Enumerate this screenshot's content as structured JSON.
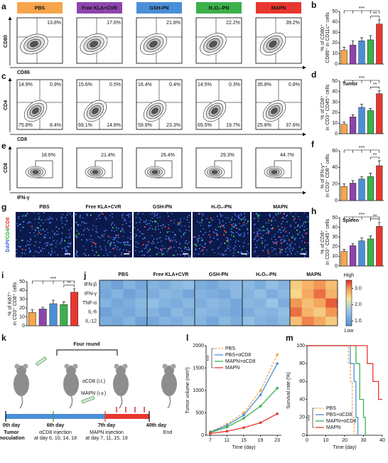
{
  "panel_labels": [
    "a",
    "b",
    "c",
    "d",
    "e",
    "f",
    "g",
    "h",
    "i",
    "j",
    "k",
    "l",
    "m"
  ],
  "groups": [
    "PBS",
    "Free KLA+CVR",
    "GSH-PN",
    "H₂O₂-PN",
    "MAPN"
  ],
  "group_colors": [
    "#f7a54a",
    "#8e44ad",
    "#4a8fd8",
    "#3cb04a",
    "#e8372f"
  ],
  "group_text_colors": [
    "#000000",
    "#ffffff",
    "#ffffff",
    "#000000",
    "#ffffff"
  ],
  "flow_a": {
    "y_label": "CD80",
    "x_label": "CD86",
    "percentages": [
      "13.8%",
      "17.6%",
      "21.8%",
      "22.2%",
      "39.2%"
    ]
  },
  "flow_c": {
    "y_label": "CD4",
    "x_label": "CD8",
    "quadrants": [
      [
        "14.9%",
        "0.9%",
        "75.8%",
        "8.4%"
      ],
      [
        "15.6%",
        "0.5%",
        "69.1%",
        "14.8%"
      ],
      [
        "16.4%",
        "0.4%",
        "59.9%",
        "23.3%"
      ],
      [
        "14.5%",
        "0.3%",
        "65.5%",
        "19.7%"
      ],
      [
        "35.8%",
        "0.8%",
        "25.8%",
        "37.6%"
      ]
    ]
  },
  "flow_e": {
    "y_label": "CD8",
    "x_label": "IFN-γ",
    "percentages": [
      "18.6%",
      "21.4%",
      "26.4%",
      "29.3%",
      "44.7%"
    ]
  },
  "imaging_g": {
    "stain": [
      "DAPI",
      "/CD4",
      "/CD8"
    ],
    "stain_colors": [
      "#3b5bdb",
      "#2fb344",
      "#e03131"
    ]
  },
  "timeline_k": {
    "bracket": "Four round",
    "acd8": "αCD8 (i.t.)",
    "mapn": "MAPN (i.v.)",
    "days": [
      "0th day",
      "6th day",
      "7th day",
      "40th day"
    ],
    "notes": [
      [
        "Tumor",
        "inoculation"
      ],
      [
        "αCD8 injection",
        "at day 6, 10, 14, 18"
      ],
      [
        "MAPN injection",
        "at day 7, 11, 15, 19"
      ],
      [
        "End"
      ]
    ]
  },
  "chart_data": [
    {
      "type": "bar",
      "y_label": [
        "% of CD80⁺",
        "CD86⁺ in CD11c⁺ cells"
      ],
      "values": [
        13,
        18,
        22,
        23,
        38
      ],
      "errors": [
        3,
        4,
        3,
        4,
        4
      ],
      "colors": [
        "#f7a54a",
        "#8e44ad",
        "#4a8fd8",
        "#3cb04a",
        "#e8372f"
      ],
      "ylim": [
        0,
        50
      ],
      "yticks": [
        0,
        10,
        20,
        30,
        40,
        50
      ],
      "annotations": [
        "***",
        "**"
      ]
    },
    {
      "type": "bar",
      "title": "Tumor",
      "y_label": [
        "% of CD8⁺",
        "in CD3⁺ CD45⁺ cells"
      ],
      "values": [
        9,
        16,
        25,
        22,
        38
      ],
      "errors": [
        2,
        2,
        3,
        2,
        3
      ],
      "colors": [
        "#f7a54a",
        "#8e44ad",
        "#4a8fd8",
        "#3cb04a",
        "#e8372f"
      ],
      "ylim": [
        0,
        50
      ],
      "yticks": [
        0,
        10,
        20,
        30,
        40,
        50
      ],
      "annotations": [
        "***",
        "**"
      ]
    },
    {
      "type": "bar",
      "y_label": [
        "% of IFN-γ⁺",
        "in CD3⁺ CD8⁺ cells"
      ],
      "values": [
        17,
        21,
        26,
        29,
        42
      ],
      "errors": [
        3,
        3,
        3,
        4,
        6
      ],
      "colors": [
        "#f7a54a",
        "#8e44ad",
        "#4a8fd8",
        "#3cb04a",
        "#e8372f"
      ],
      "ylim": [
        0,
        60
      ],
      "yticks": [
        0,
        20,
        40,
        60
      ],
      "annotations": [
        "***",
        "**"
      ]
    },
    {
      "type": "bar",
      "title": "Spleen",
      "y_label": [
        "% of CD8⁺",
        "in CD3⁺ CD45⁺ cells"
      ],
      "values": [
        15,
        21,
        26,
        28,
        41
      ],
      "errors": [
        2,
        2,
        3,
        3,
        4
      ],
      "colors": [
        "#f7a54a",
        "#8e44ad",
        "#4a8fd8",
        "#3cb04a",
        "#e8372f"
      ],
      "ylim": [
        0,
        50
      ],
      "yticks": [
        0,
        10,
        20,
        30,
        40,
        50
      ],
      "annotations": [
        "***",
        "**"
      ]
    },
    {
      "type": "bar",
      "y_label": [
        "% of Ki67⁺",
        "in CD3⁺ CD8⁺ cells"
      ],
      "values": [
        15,
        19,
        25,
        24,
        38
      ],
      "errors": [
        3,
        2,
        4,
        3,
        4
      ],
      "colors": [
        "#f7a54a",
        "#8e44ad",
        "#4a8fd8",
        "#3cb04a",
        "#e8372f"
      ],
      "ylim": [
        0,
        50
      ],
      "yticks": [
        0,
        10,
        20,
        30,
        40,
        50
      ],
      "annotations": [
        "***",
        "**"
      ]
    },
    {
      "type": "heatmap",
      "column_groups": [
        "PBS",
        "Free KLA+CVR",
        "GSH-PN",
        "H₂O₂-PN",
        "MAPN"
      ],
      "row_labels": [
        "IFN-β",
        "IFN-γ",
        "TNF-α",
        "IL-6",
        "IL-12"
      ],
      "values": [
        [
          1.2,
          1.0,
          1.3,
          1.1,
          1.3,
          1.2,
          1.4,
          1.5,
          1.2,
          1.1,
          1.3,
          1.4,
          1.4,
          1.2,
          1.5,
          1.3,
          2.6,
          2.8,
          3.0,
          2.7
        ],
        [
          1.1,
          1.3,
          1.0,
          1.2,
          1.2,
          1.4,
          1.3,
          1.1,
          1.3,
          1.2,
          1.1,
          1.4,
          1.3,
          1.5,
          1.2,
          1.4,
          2.5,
          2.9,
          3.2,
          2.8
        ],
        [
          1.3,
          1.1,
          1.2,
          1.4,
          1.5,
          1.3,
          1.2,
          1.4,
          1.2,
          1.4,
          1.3,
          1.1,
          1.4,
          1.3,
          1.6,
          1.2,
          3.0,
          2.7,
          2.9,
          3.3
        ],
        [
          1.0,
          1.2,
          1.1,
          1.3,
          1.3,
          1.1,
          1.4,
          1.2,
          1.4,
          1.3,
          1.2,
          1.1,
          1.2,
          1.4,
          1.3,
          1.5,
          3.2,
          2.8,
          2.6,
          3.0
        ],
        [
          1.2,
          1.1,
          1.3,
          1.0,
          1.1,
          1.3,
          1.2,
          1.4,
          1.3,
          1.1,
          1.4,
          1.2,
          1.5,
          1.3,
          1.2,
          1.4,
          2.7,
          3.1,
          2.9,
          2.6
        ]
      ],
      "clim": [
        0.7,
        3.5
      ],
      "cticks": [
        {
          "value": 1,
          "label": "1.0"
        },
        {
          "value": 2,
          "label": "2.0"
        },
        {
          "value": 3,
          "label": "3.0"
        }
      ],
      "high_label": "High",
      "low_label": "Low"
    },
    {
      "type": "line",
      "x_label": "Time (day)",
      "y_label": "Tumor volume (mm³)",
      "x": [
        7,
        11,
        15,
        19,
        23
      ],
      "xlim": [
        6,
        24
      ],
      "xticks": [
        7,
        11,
        15,
        19,
        23
      ],
      "ylim": [
        0,
        2000
      ],
      "yticks": [
        0,
        500,
        1000,
        1500,
        2000
      ],
      "annotations": [
        "***"
      ],
      "series": [
        {
          "name": "PBS",
          "color": "#f7a54a",
          "dashed": true,
          "values": [
            80,
            250,
            500,
            1000,
            1800
          ]
        },
        {
          "name": "PBS+αCD8",
          "color": "#4a8fd8",
          "values": [
            70,
            220,
            450,
            900,
            1600
          ]
        },
        {
          "name": "MAPN+αCD8",
          "color": "#3cb04a",
          "values": [
            60,
            180,
            380,
            650,
            1050
          ]
        },
        {
          "name": "MAPN",
          "color": "#e8372f",
          "values": [
            40,
            90,
            170,
            280,
            480
          ]
        }
      ]
    },
    {
      "type": "step",
      "x_label": "Time (day)",
      "y_label": "Survival rate (%)",
      "xlim": [
        0,
        40
      ],
      "xticks": [
        0,
        10,
        20,
        30,
        40
      ],
      "ylim": [
        0,
        100
      ],
      "yticks": [
        0,
        20,
        40,
        60,
        80,
        100
      ],
      "annotations": [
        "***"
      ],
      "series": [
        {
          "name": "PBS",
          "color": "#f7a54a",
          "dashed": true,
          "x": [
            0,
            22,
            22,
            23,
            23,
            24,
            24,
            25,
            25
          ],
          "values": [
            100,
            100,
            80,
            80,
            60,
            60,
            20,
            20,
            0
          ]
        },
        {
          "name": "PBS+αCD8",
          "color": "#4a8fd8",
          "x": [
            0,
            23,
            23,
            25,
            25,
            26,
            26,
            27,
            27
          ],
          "values": [
            100,
            100,
            80,
            80,
            60,
            60,
            20,
            20,
            0
          ]
        },
        {
          "name": "MAPN+αCD8",
          "color": "#3cb04a",
          "x": [
            0,
            26,
            26,
            28,
            28,
            30,
            30,
            31,
            31
          ],
          "values": [
            100,
            100,
            80,
            80,
            40,
            40,
            20,
            20,
            0
          ]
        },
        {
          "name": "MAPN",
          "color": "#e8372f",
          "x": [
            0,
            32,
            32,
            35,
            35,
            38,
            38,
            40
          ],
          "values": [
            100,
            100,
            80,
            80,
            60,
            60,
            40,
            40
          ]
        }
      ]
    }
  ]
}
